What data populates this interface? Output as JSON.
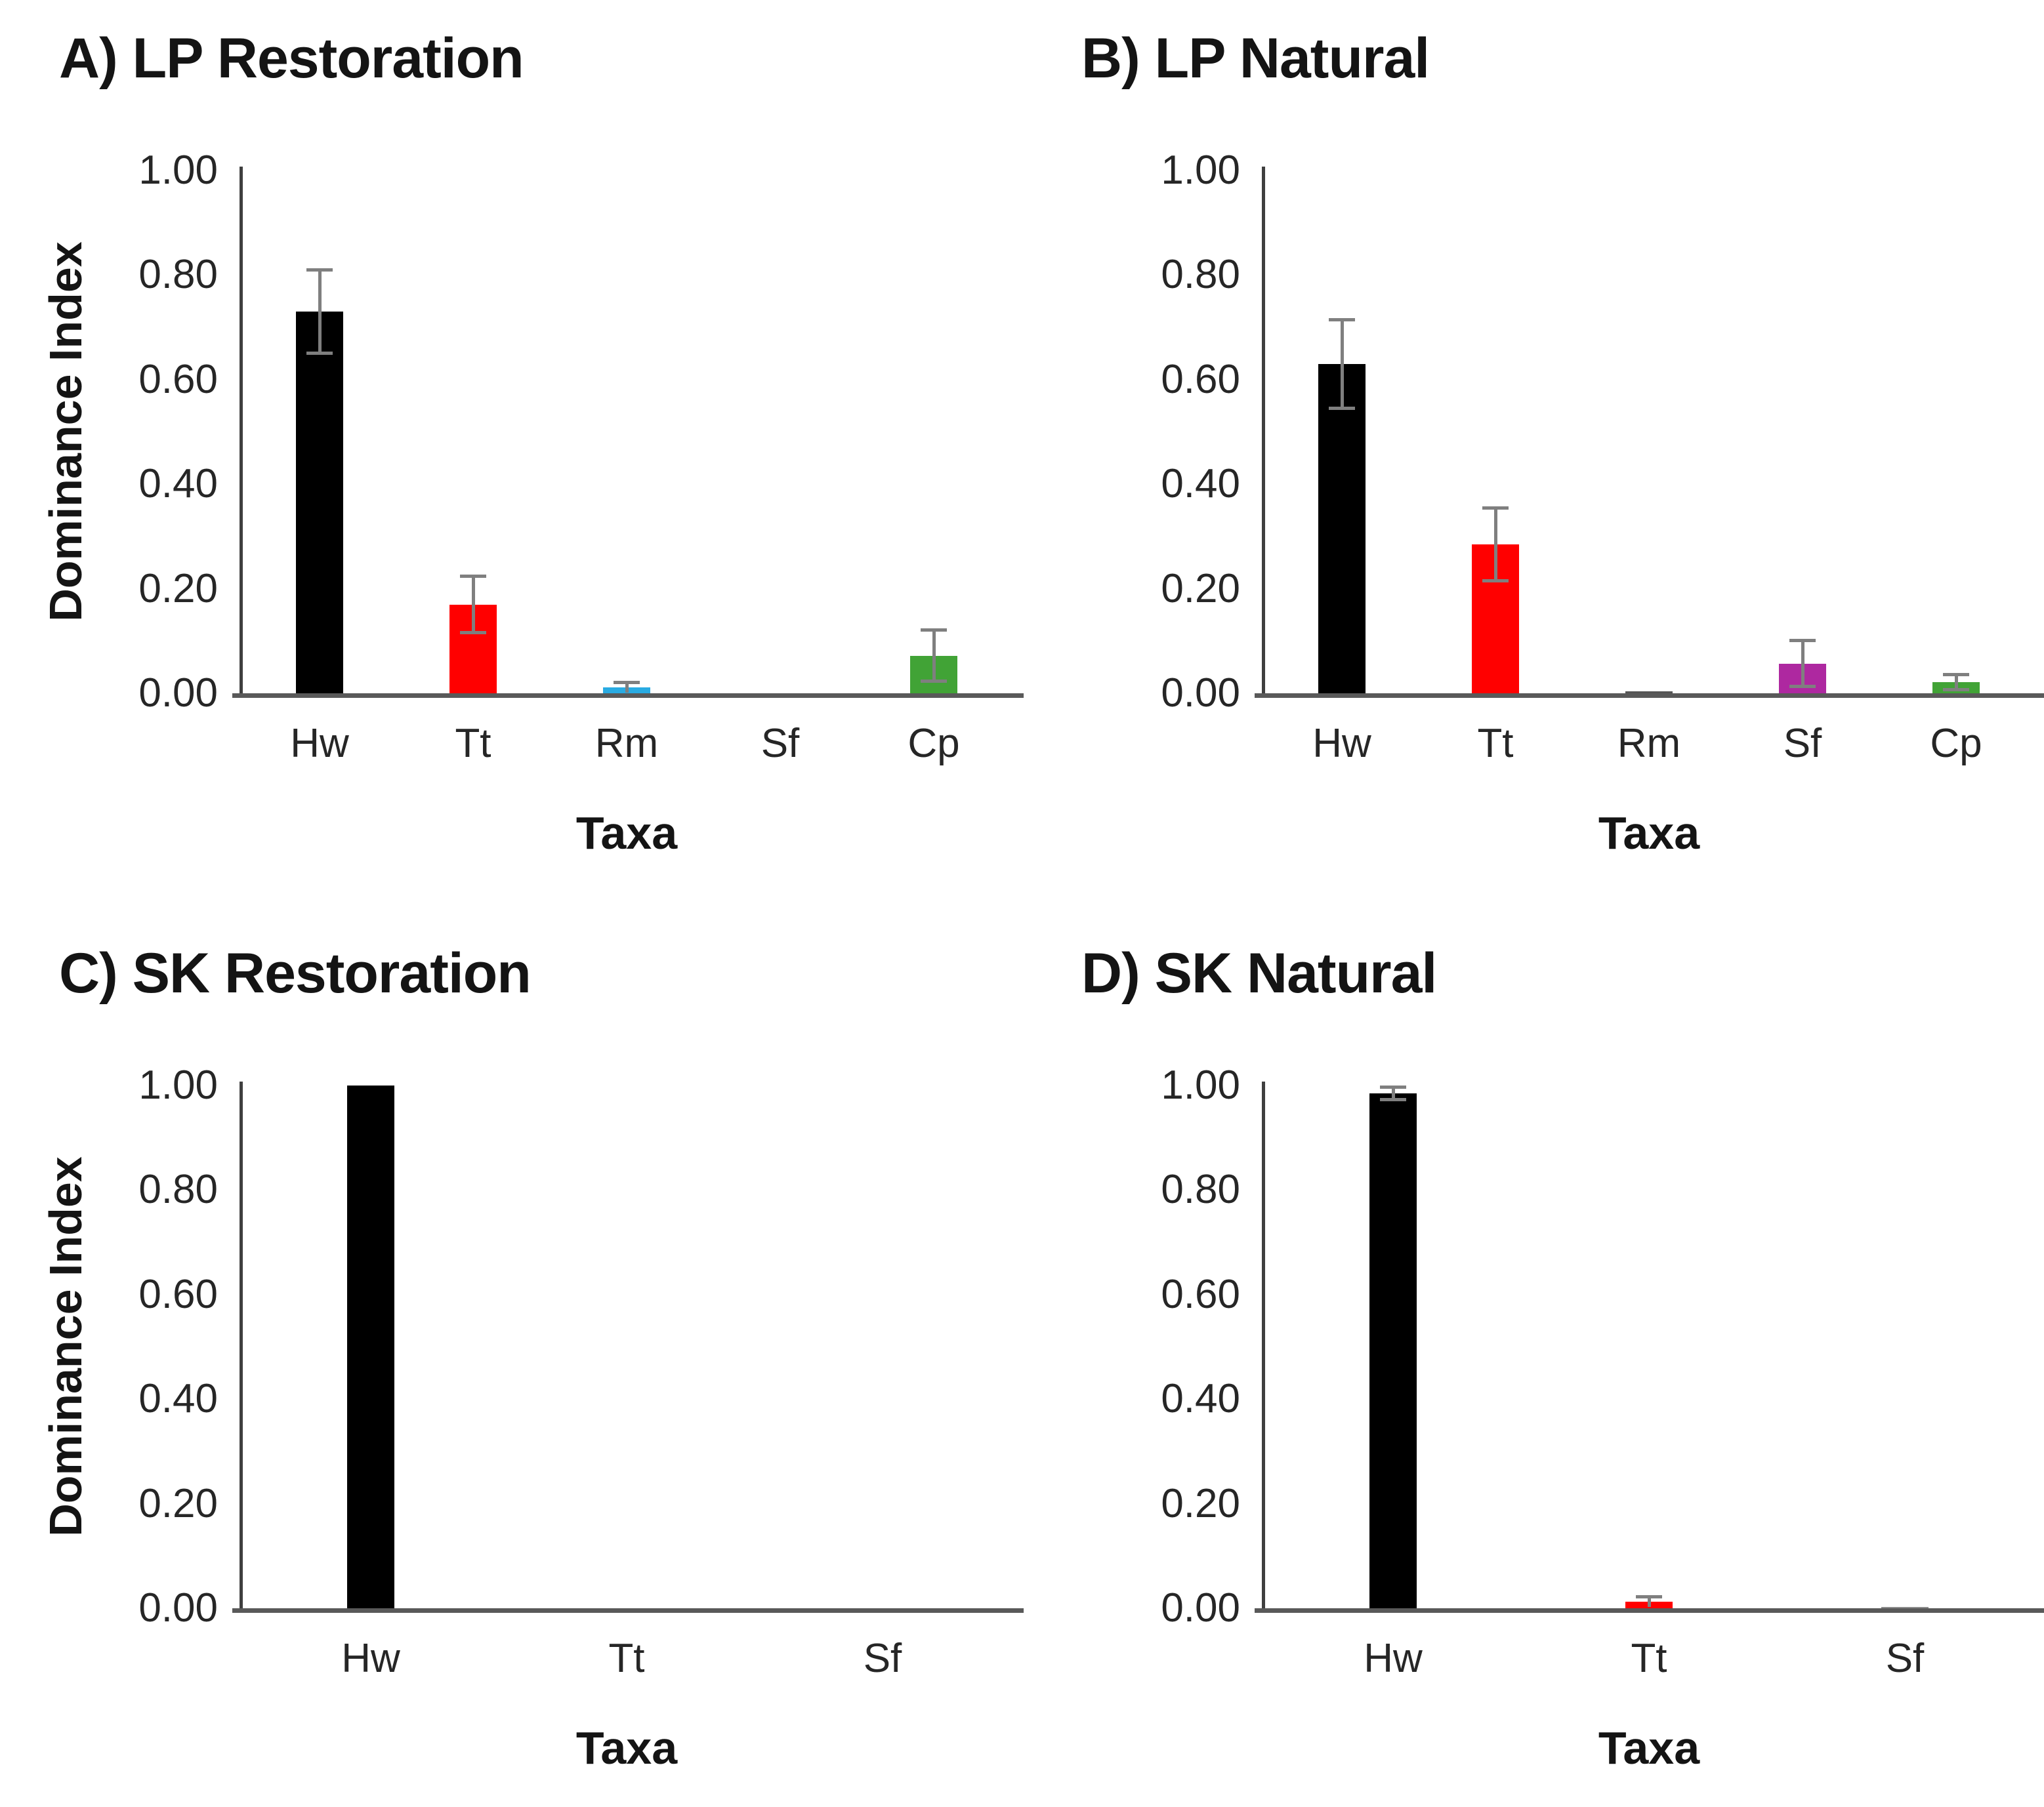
{
  "figure": {
    "background": "#FFFFFF",
    "description_visible_text_only": true
  },
  "chart_data": [
    {
      "panel": "A",
      "type": "bar",
      "title": "A) LP Restoration",
      "xlabel": "Taxa",
      "ylabel": "Dominance Index",
      "ylim": [
        0,
        1.0
      ],
      "ytick_step": 0.2,
      "ytick_labels": [
        "0.00",
        "0.20",
        "0.40",
        "0.60",
        "0.80",
        "1.00"
      ],
      "grid": false,
      "legend": "none",
      "categories": [
        "Hw",
        "Tt",
        "Rm",
        "Sf",
        "Cp"
      ],
      "values": [
        0.73,
        0.17,
        0.011,
        0.0,
        0.072
      ],
      "errors": [
        0.08,
        0.055,
        0.01,
        0.0,
        0.05
      ],
      "bar_colors": [
        "#000000",
        "#FF0000",
        "#29ABE2",
        "#AE28A0",
        "#41A336"
      ],
      "error_color": "#7f7f7f",
      "axis_color": "#3f3f3f",
      "baseline_color": "#595959"
    },
    {
      "panel": "B",
      "type": "bar",
      "title": "B) LP Natural",
      "xlabel": "Taxa",
      "ylabel": "",
      "ylim": [
        0,
        1.0
      ],
      "ytick_step": 0.2,
      "ytick_labels": [
        "0.00",
        "0.20",
        "0.40",
        "0.60",
        "0.80",
        "1.00"
      ],
      "grid": false,
      "legend": "none",
      "categories": [
        "Hw",
        "Tt",
        "Rm",
        "Sf",
        "Cp"
      ],
      "values": [
        0.63,
        0.285,
        0.004,
        0.057,
        0.021
      ],
      "errors": [
        0.085,
        0.07,
        0.0,
        0.045,
        0.015
      ],
      "bar_colors": [
        "#000000",
        "#FF0000",
        "#555555",
        "#AE28A0",
        "#41A336"
      ],
      "error_color": "#7f7f7f",
      "axis_color": "#3f3f3f",
      "baseline_color": "#595959"
    },
    {
      "panel": "C",
      "type": "bar",
      "title": "C) SK Restoration",
      "xlabel": "Taxa",
      "ylabel": "Dominance Index",
      "ylim": [
        0,
        1.0
      ],
      "ytick_step": 0.2,
      "ytick_labels": [
        "0.00",
        "0.20",
        "0.40",
        "0.60",
        "0.80",
        "1.00"
      ],
      "grid": false,
      "legend": "none",
      "categories": [
        "Hw",
        "Tt",
        "Sf"
      ],
      "values": [
        1.0,
        0.0,
        0.0
      ],
      "errors": [
        0.0,
        0.0,
        0.0
      ],
      "bar_colors": [
        "#000000",
        "#FF0000",
        "#AE28A0"
      ],
      "error_color": "#7f7f7f",
      "axis_color": "#3f3f3f",
      "baseline_color": "#595959"
    },
    {
      "panel": "D",
      "type": "bar",
      "title": "D) SK Natural",
      "xlabel": "Taxa",
      "ylabel": "",
      "ylim": [
        0,
        1.0
      ],
      "ytick_step": 0.2,
      "ytick_labels": [
        "0.00",
        "0.20",
        "0.40",
        "0.60",
        "0.80",
        "1.00"
      ],
      "grid": false,
      "legend": "none",
      "categories": [
        "Hw",
        "Tt",
        "Sf"
      ],
      "values": [
        0.985,
        0.013,
        0.003
      ],
      "errors": [
        0.012,
        0.01,
        0.0
      ],
      "bar_colors": [
        "#000000",
        "#FF0000",
        "#8c8c8c"
      ],
      "error_color": "#7f7f7f",
      "axis_color": "#3f3f3f",
      "baseline_color": "#595959"
    }
  ]
}
